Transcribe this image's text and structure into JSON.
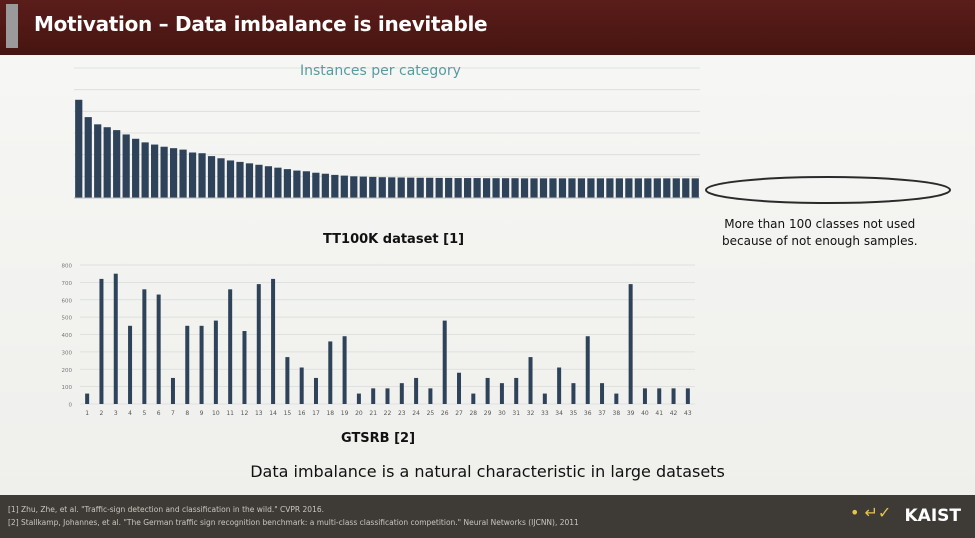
{
  "title": "Motivation – Data imbalance is inevitable",
  "note_lines": [
    "More than 100 classes not used",
    "because of not enough samples."
  ],
  "statement": "Data imbalance is a natural characteristic in large datasets",
  "references": [
    "[1] Zhu, Zhe, et al. \"Traffic-sign detection and classification in the wild.\" CVPR 2016.",
    "[2] Stallkamp, Johannes, et al. \"The German traffic sign recognition benchmark: a multi-class classification competition.\" Neural Networks (IJCNN), 2011"
  ],
  "logo_text": "KAIST",
  "colors": {
    "titlebar": "#4d1713",
    "bar_tt100k": "#2e4259",
    "bar_gtsrb": "#2e4259",
    "ellipse": "#2a2a2a"
  },
  "chart_data": [
    {
      "type": "bar",
      "title": "Instances per category",
      "caption": "TT100K dataset [1]",
      "ylim": [
        0,
        900
      ],
      "values": [
        680,
        560,
        510,
        490,
        470,
        440,
        410,
        385,
        370,
        355,
        345,
        335,
        315,
        310,
        290,
        275,
        260,
        250,
        240,
        230,
        220,
        210,
        200,
        190,
        185,
        175,
        168,
        160,
        155,
        150,
        148,
        146,
        144,
        143,
        142,
        141,
        140,
        140,
        139,
        139,
        138,
        138,
        138,
        137,
        137,
        137,
        137,
        136,
        136,
        136,
        136,
        136,
        136,
        136,
        136,
        136,
        136,
        136,
        136,
        136,
        136,
        136,
        136,
        136,
        136,
        136
      ]
    },
    {
      "type": "bar",
      "caption": "GTSRB [2]",
      "ylim": [
        0,
        800
      ],
      "yticks": [
        "0",
        "100",
        "200",
        "300",
        "400",
        "500",
        "600",
        "700",
        "800"
      ],
      "categories": [
        "1",
        "2",
        "3",
        "4",
        "5",
        "6",
        "7",
        "8",
        "9",
        "10",
        "11",
        "12",
        "13",
        "14",
        "15",
        "16",
        "17",
        "18",
        "19",
        "20",
        "21",
        "22",
        "23",
        "24",
        "25",
        "26",
        "27",
        "28",
        "29",
        "30",
        "31",
        "32",
        "33",
        "34",
        "35",
        "36",
        "37",
        "38",
        "39",
        "40",
        "41",
        "42",
        "43"
      ],
      "values": [
        60,
        720,
        750,
        450,
        660,
        630,
        150,
        450,
        450,
        480,
        660,
        420,
        690,
        720,
        270,
        210,
        150,
        360,
        390,
        60,
        90,
        90,
        120,
        150,
        90,
        480,
        180,
        60,
        150,
        120,
        150,
        270,
        60,
        210,
        120,
        390,
        120,
        60,
        690,
        90,
        90,
        90,
        90
      ]
    }
  ]
}
